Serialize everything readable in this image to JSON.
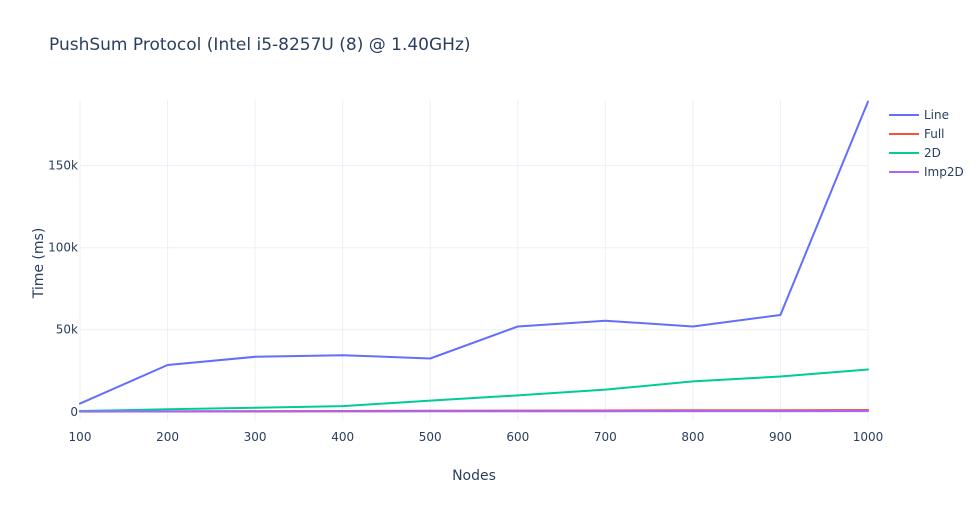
{
  "chart_data": {
    "type": "line",
    "title": "PushSum Protocol (Intel i5-8257U (8) @ 1.40GHz)",
    "xlabel": "Nodes",
    "ylabel": "Time (ms)",
    "x": [
      100,
      200,
      300,
      400,
      500,
      600,
      700,
      800,
      900,
      1000
    ],
    "xlim": [
      100,
      1000
    ],
    "ylim": [
      -5000,
      190000
    ],
    "xticks": [
      "100",
      "200",
      "300",
      "400",
      "500",
      "600",
      "700",
      "800",
      "900",
      "1000"
    ],
    "yticks": [
      {
        "value": 0,
        "label": "0"
      },
      {
        "value": 50000,
        "label": "50k"
      },
      {
        "value": 100000,
        "label": "100k"
      },
      {
        "value": 150000,
        "label": "150k"
      }
    ],
    "grid": true,
    "legend_position": "top-right",
    "series": [
      {
        "name": "Line",
        "color": "#636efa",
        "values": [
          5000,
          28500,
          33500,
          34500,
          32500,
          52000,
          55500,
          52000,
          59000,
          189000
        ]
      },
      {
        "name": "Full",
        "color": "#ef553b",
        "values": [
          200,
          300,
          400,
          500,
          600,
          700,
          800,
          900,
          1000,
          1100
        ]
      },
      {
        "name": "2D",
        "color": "#00cc96",
        "values": [
          500,
          1500,
          2500,
          3500,
          6800,
          10000,
          13500,
          18500,
          21500,
          25800
        ]
      },
      {
        "name": "Imp2D",
        "color": "#ab63fa",
        "values": [
          100,
          150,
          200,
          250,
          280,
          320,
          380,
          420,
          450,
          500
        ]
      }
    ]
  }
}
